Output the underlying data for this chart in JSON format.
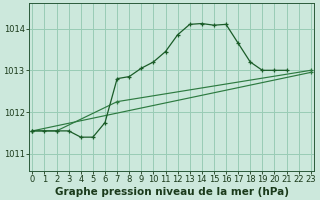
{
  "xlabel": "Graphe pression niveau de la mer (hPa)",
  "background_color": "#cce8dc",
  "grid_color": "#99ccb5",
  "line_color_dark": "#1a5c28",
  "line_color_mid": "#2d7a40",
  "x_ticks": [
    0,
    1,
    2,
    3,
    4,
    5,
    6,
    7,
    8,
    9,
    10,
    11,
    12,
    13,
    14,
    15,
    16,
    17,
    18,
    19,
    20,
    21,
    22,
    23
  ],
  "y_ticks": [
    1011,
    1012,
    1013,
    1014
  ],
  "xlim": [
    -0.3,
    23.3
  ],
  "ylim": [
    1010.6,
    1014.6
  ],
  "series1_x": [
    0,
    1,
    2,
    3,
    4,
    5,
    6,
    7,
    8,
    9,
    10,
    11,
    12,
    13,
    14,
    15,
    16,
    17,
    18,
    19,
    20,
    21
  ],
  "series1_y": [
    1011.55,
    1011.55,
    1011.55,
    1011.55,
    1011.4,
    1011.4,
    1011.75,
    1012.8,
    1012.85,
    1013.05,
    1013.2,
    1013.45,
    1013.85,
    1014.1,
    1014.12,
    1014.08,
    1014.1,
    1013.65,
    1013.2,
    1013.0,
    1013.0,
    1013.0
  ],
  "series2_x": [
    0,
    2,
    7,
    23
  ],
  "series2_y": [
    1011.55,
    1011.55,
    1012.25,
    1013.0
  ],
  "series3_x": [
    0,
    23
  ],
  "series3_y": [
    1011.55,
    1012.95
  ],
  "label_fontsize": 7,
  "tick_fontsize": 6,
  "xlabel_fontsize": 7.5
}
